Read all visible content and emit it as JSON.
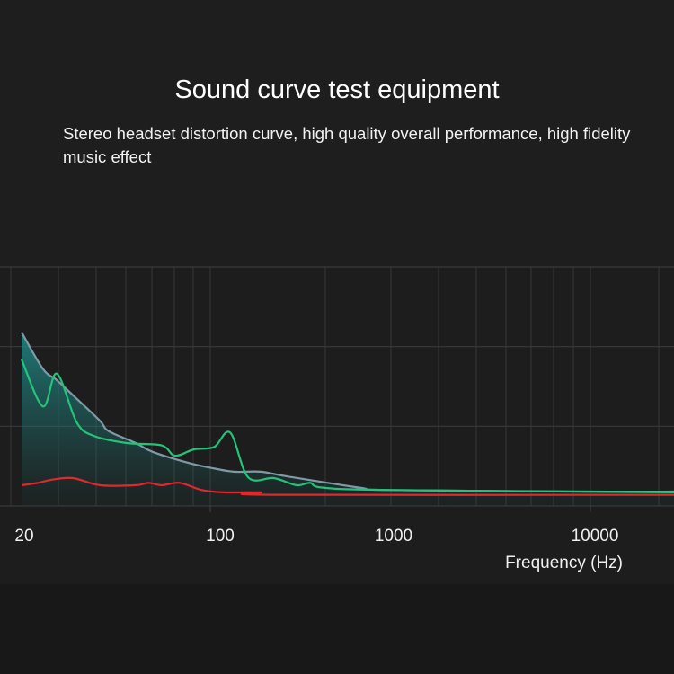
{
  "title": "Sound curve test equipment",
  "subtitle": "Stereo headset distortion curve, high quality overall performance, high fidelity music effect",
  "chart_data": {
    "type": "line",
    "title": "Sound curve test equipment",
    "xlabel": "Frequency (Hz)",
    "ylabel": "",
    "xscale": "log",
    "xlim": [
      20,
      26000
    ],
    "ylim": [
      0,
      3
    ],
    "grid": true,
    "x_ticks": [
      {
        "value": 20,
        "label": "20"
      },
      {
        "value": 100,
        "label": "100"
      },
      {
        "value": 1000,
        "label": "1000"
      },
      {
        "value": 10000,
        "label": "10000"
      }
    ],
    "series": [
      {
        "name": "gray",
        "color": "#7f9aa6",
        "fill": true,
        "x": [
          20,
          24,
          27,
          31,
          39,
          42,
          53,
          61,
          83,
          100,
          135,
          190,
          268,
          670,
          1000,
          10000,
          26000
        ],
        "y": [
          2.18,
          1.72,
          1.58,
          1.39,
          1.07,
          0.94,
          0.79,
          0.68,
          0.54,
          0.48,
          0.43,
          0.43,
          0.37,
          0.23,
          0.2,
          0.18,
          0.18
        ]
      },
      {
        "name": "green",
        "color": "#22c47a",
        "x": [
          20,
          24,
          27,
          32,
          37,
          49,
          66,
          74,
          87,
          105,
          129,
          162,
          225,
          300,
          357,
          420,
          1000,
          26000
        ],
        "y": [
          1.84,
          1.25,
          1.66,
          1.05,
          0.88,
          0.79,
          0.76,
          0.63,
          0.71,
          0.74,
          0.92,
          0.36,
          0.35,
          0.26,
          0.29,
          0.23,
          0.2,
          0.17
        ]
      },
      {
        "name": "red",
        "color": "#e0282e",
        "x": [
          20,
          23,
          26,
          31,
          39,
          53,
          59,
          66,
          77,
          93,
          120,
          190,
          225,
          26000
        ],
        "y": [
          0.26,
          0.29,
          0.33,
          0.35,
          0.26,
          0.26,
          0.29,
          0.26,
          0.29,
          0.2,
          0.17,
          0.17,
          0.14,
          0.14
        ]
      }
    ]
  }
}
